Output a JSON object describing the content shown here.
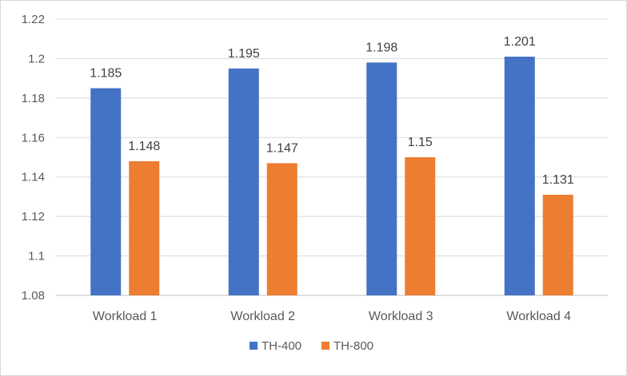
{
  "chart_data": {
    "type": "bar",
    "title": "",
    "xlabel": "",
    "ylabel": "",
    "categories": [
      "Workload 1",
      "Workload 2",
      "Workload 3",
      "Workload 4"
    ],
    "series": [
      {
        "name": "TH-400",
        "color": "#4472c4",
        "values": [
          1.185,
          1.195,
          1.198,
          1.201
        ],
        "labels": [
          "1.185",
          "1.195",
          "1.198",
          "1.201"
        ]
      },
      {
        "name": "TH-800",
        "color": "#ed7d31",
        "values": [
          1.148,
          1.147,
          1.15,
          1.131
        ],
        "labels": [
          "1.148",
          "1.147",
          "1.15",
          "1.131"
        ]
      }
    ],
    "ylim": [
      1.08,
      1.22
    ],
    "yticks": [
      "1.08",
      "1.1",
      "1.12",
      "1.14",
      "1.16",
      "1.18",
      "1.2",
      "1.22"
    ],
    "grid": true,
    "legend": "bottom"
  }
}
